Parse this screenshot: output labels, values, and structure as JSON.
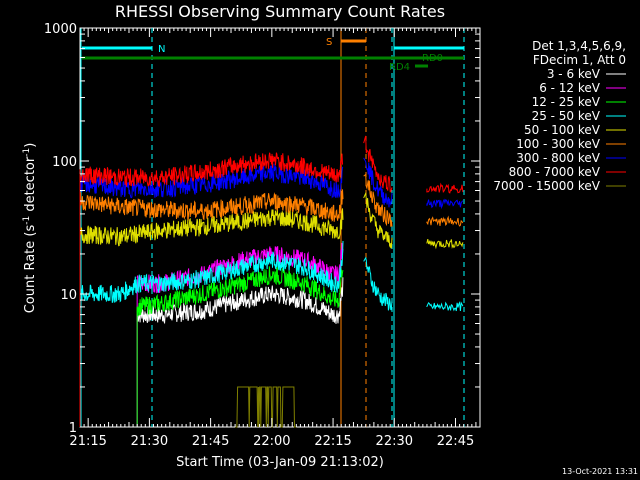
{
  "chart_data": {
    "type": "line",
    "title": "RHESSI Observing Summary Count Rates",
    "xlabel": "Start Time (03-Jan-09 21:13:02)",
    "ylabel": "Count Rate (s",
    "ylabel_sup1": "-1",
    "ylabel_mid": " detector",
    "ylabel_sup2": "-1",
    "ylabel_end": ")",
    "x_unit": "minutes after 21:13:02 UT",
    "xlim": [
      0,
      98
    ],
    "ylim": [
      1,
      1000
    ],
    "y_scale": "log",
    "x_ticks": [
      {
        "label": "21:15",
        "min": 2
      },
      {
        "label": "21:30",
        "min": 17
      },
      {
        "label": "21:45",
        "min": 32
      },
      {
        "label": "22:00",
        "min": 47
      },
      {
        "label": "22:15",
        "min": 62
      },
      {
        "label": "22:30",
        "min": 77
      },
      {
        "label": "22:45",
        "min": 92
      }
    ],
    "y_ticks": [
      {
        "label": "1",
        "value": 1
      },
      {
        "label": "10",
        "value": 10
      },
      {
        "label": "100",
        "value": 100
      },
      {
        "label": "1000",
        "value": 1000
      }
    ],
    "legend_header": [
      "Det 1,3,4,5,6,9,",
      "FDecim 1, Att 0"
    ],
    "legend_placement": "right",
    "series": [
      {
        "name": "3 - 6 keV",
        "color": "#ffffff",
        "x": [
          14,
          20,
          30,
          40,
          47,
          55,
          62,
          63.5,
          64.5
        ],
        "y": [
          7,
          7,
          7.5,
          9,
          10,
          9,
          7,
          7,
          12
        ]
      },
      {
        "name": "6 - 12 keV",
        "color": "#ff00ff",
        "x": [
          14,
          20,
          30,
          40,
          47,
          55,
          62,
          63.5,
          64.5
        ],
        "y": [
          12,
          12,
          14,
          18,
          20,
          18,
          14,
          14,
          25
        ]
      },
      {
        "name": "12 - 25 keV",
        "color": "#00ff00",
        "x": [
          14,
          20,
          30,
          40,
          47,
          55,
          62,
          63.5,
          64.5
        ],
        "y": [
          8,
          8.5,
          10,
          12,
          14,
          12,
          9,
          9,
          18
        ]
      },
      {
        "name": "25 - 50 keV",
        "color": "#00ffff",
        "x": [
          0,
          5,
          10,
          14,
          20,
          30,
          40,
          47,
          55,
          62,
          63.5,
          64.5
        ],
        "y": [
          10,
          10,
          10,
          12,
          12,
          13,
          16,
          18,
          16,
          12,
          12,
          22
        ]
      },
      {
        "name": "50 - 100 keV",
        "color": "#e0e000",
        "x": [
          0,
          10,
          20,
          30,
          40,
          47,
          55,
          62,
          63.5,
          64.5
        ],
        "y": [
          28,
          27,
          30,
          32,
          35,
          38,
          35,
          30,
          30,
          40
        ]
      },
      {
        "name": "100 - 300 keV",
        "color": "#ff8000",
        "x": [
          0,
          10,
          20,
          30,
          40,
          47,
          55,
          62,
          63.5,
          64.5
        ],
        "y": [
          50,
          45,
          43,
          42,
          46,
          50,
          46,
          40,
          40,
          60
        ]
      },
      {
        "name": "300 - 800 keV",
        "color": "#0000ff",
        "x": [
          0,
          10,
          20,
          30,
          40,
          47,
          55,
          62,
          63.5,
          64.5
        ],
        "y": [
          68,
          62,
          62,
          66,
          75,
          82,
          75,
          62,
          62,
          85
        ]
      },
      {
        "name": "800 - 7000 keV",
        "color": "#ff0000",
        "x": [
          0,
          10,
          20,
          30,
          40,
          47,
          55,
          62,
          63.5,
          64.5
        ],
        "y": [
          80,
          75,
          75,
          82,
          95,
          102,
          90,
          78,
          78,
          110
        ]
      },
      {
        "name": "7000 - 15000 keV",
        "color": "#808000",
        "x": [
          38,
          40,
          44,
          48,
          52,
          53
        ],
        "y": [
          1,
          2,
          2,
          2,
          2,
          1
        ]
      }
    ],
    "flags": [
      {
        "label": "N",
        "color": "#00ffff"
      },
      {
        "label": "S",
        "color": "#ff8000"
      },
      {
        "label": "RD0",
        "color": "#008000"
      },
      {
        "label": "RD4",
        "color": "#008000"
      }
    ],
    "grid": false,
    "background": "#000000"
  },
  "timestamp": "13-Oct-2021 13:31"
}
